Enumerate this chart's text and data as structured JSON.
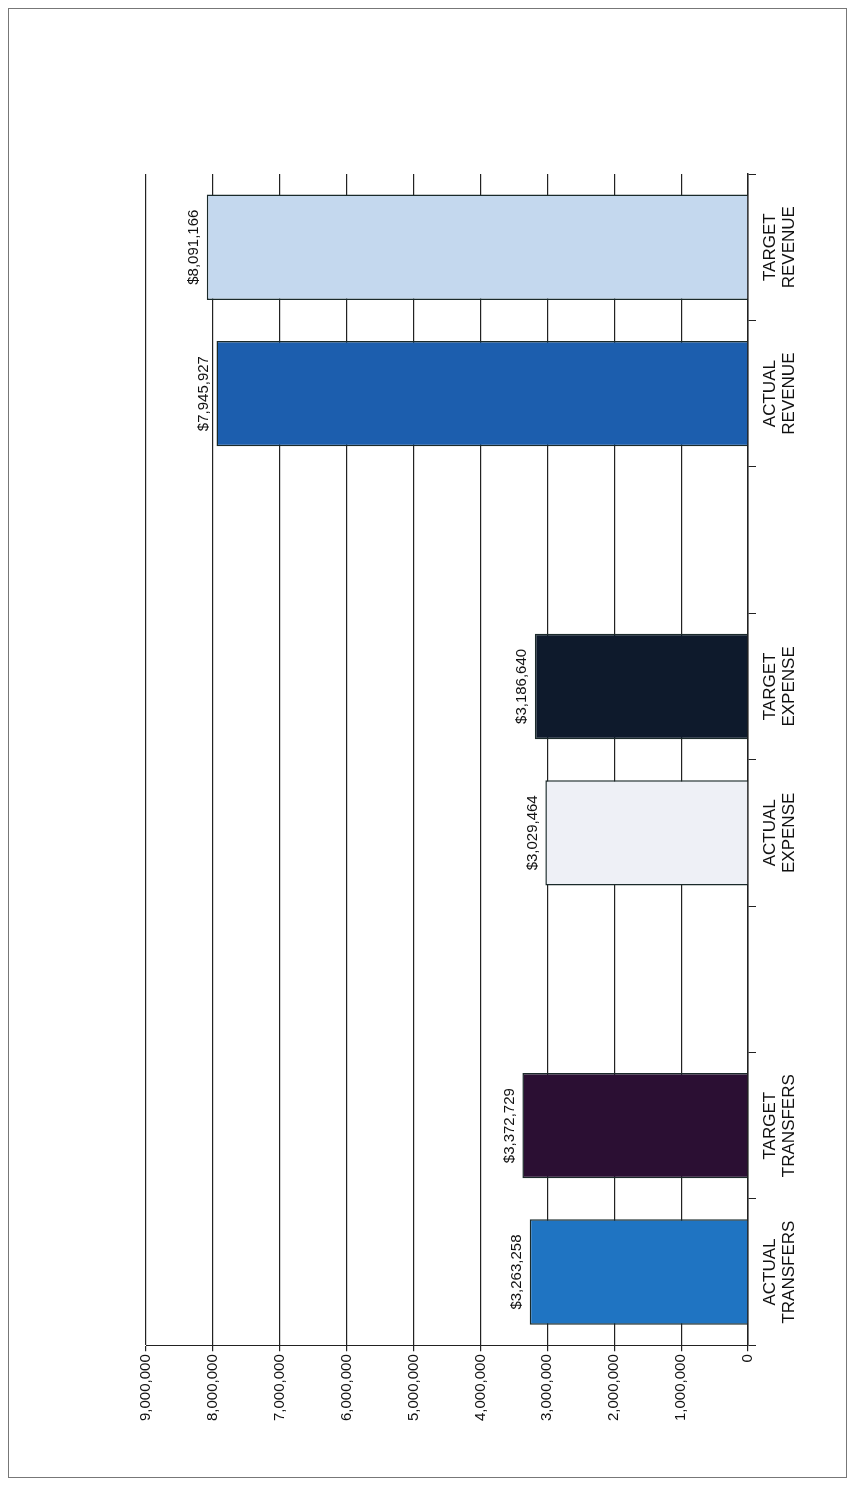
{
  "chart_data": {
    "type": "bar",
    "orientation": "horizontal",
    "categories": [
      "TARGET REVENUE",
      "ACTUAL REVENUE",
      null,
      "TARGET EXPENSE",
      "ACTUAL EXPENSE",
      null,
      "TARGET TRANSFERS",
      "ACTUAL TRANSFERS"
    ],
    "values": [
      8091166,
      7945927,
      null,
      3186640,
      3029464,
      null,
      3372729,
      3263258
    ],
    "colors": [
      "#c4d8ee",
      "#1c5eae",
      null,
      "#0e1a2c",
      "#eef0f6",
      null,
      "#2b0f33",
      "#1f74c2"
    ],
    "value_labels": [
      "$8,091,166",
      "$7,945,927",
      null,
      "$3,186,640",
      "$3,029,464",
      null,
      "$3,372,729",
      "$3,263,258"
    ],
    "xlim": [
      9000000,
      0
    ],
    "xticks": [
      {
        "value": 9000000,
        "label": "9,000,000"
      },
      {
        "value": 8000000,
        "label": "8,000,000"
      },
      {
        "value": 7000000,
        "label": "7,000,000"
      },
      {
        "value": 6000000,
        "label": "6,000,000"
      },
      {
        "value": 5000000,
        "label": "5,000,000"
      },
      {
        "value": 4000000,
        "label": "4,000,000"
      },
      {
        "value": 3000000,
        "label": "3,000,000"
      },
      {
        "value": 2000000,
        "label": "2,000,000"
      },
      {
        "value": 1000000,
        "label": "1,000,000"
      },
      0
    ],
    "grid": "x"
  }
}
